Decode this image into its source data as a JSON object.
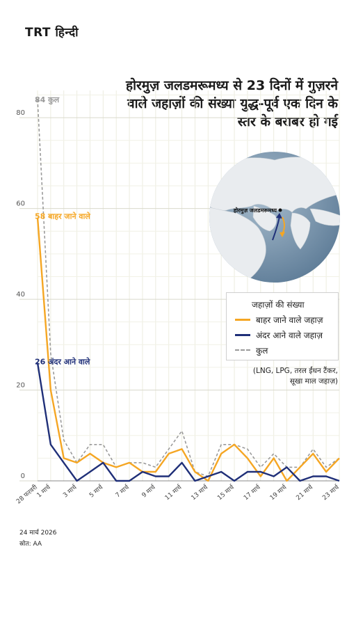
{
  "brand": {
    "logo": "TRT हिन्दी"
  },
  "title_lines": [
    "होरमुज़ जलडमरूमध्य से 23 दिनों में गुज़रने",
    "वाले जहाज़ों की संख्या युद्ध-पूर्व एक दिन के",
    "स्तर के बराबर हो गई"
  ],
  "map": {
    "label": "होरमुज़ जलडमरूमध्य"
  },
  "legend": {
    "title": "जहाज़ों की संख्या",
    "items": [
      {
        "label": "बाहर जाने वाले जहाज़",
        "color": "#f5a623",
        "style": "solid"
      },
      {
        "label": "अंदर आने वाले जहाज़",
        "color": "#1f2f78",
        "style": "solid"
      },
      {
        "label": "कुल",
        "color": "#9a9a9a",
        "style": "dashed"
      }
    ]
  },
  "note_lines": [
    "(LNG, LPG, तरल ईंधन टैंकर,",
    "सूखा माल जहाज़)"
  ],
  "footer": {
    "date": "24 मार्च 2026",
    "source": "स्रोत: AA"
  },
  "chart_data": {
    "type": "line",
    "title": "होरमुज़ जलडमरूमध्य से 23 दिनों में गुज़रने वाले जहाज़ों की संख्या युद्ध-पूर्व एक दिन के स्तर के बराबर हो गई",
    "x": [
      "28 फरवरी",
      "1 मार्च",
      "2 मार्च",
      "3 मार्च",
      "4 मार्च",
      "5 मार्च",
      "6 मार्च",
      "7 मार्च",
      "8 मार्च",
      "9 मार्च",
      "10 मार्च",
      "11 मार्च",
      "12 मार्च",
      "13 मार्च",
      "14 मार्च",
      "15 मार्च",
      "16 मार्च",
      "17 मार्च",
      "18 मार्च",
      "19 मार्च",
      "20 मार्च",
      "21 मार्च",
      "22 मार्च",
      "23 मार्च"
    ],
    "xtick_labels": [
      "28 फरवरी",
      "1 मार्च",
      "3 मार्च",
      "5 मार्च",
      "7 मार्च",
      "9 मार्च",
      "11 मार्च",
      "13 मार्च",
      "15 मार्च",
      "17 मार्च",
      "19 मार्च",
      "21 मार्च",
      "23 मार्च"
    ],
    "yticks": [
      0,
      20,
      40,
      60,
      80
    ],
    "ylim": [
      0,
      86
    ],
    "grid": true,
    "legend_position": "right",
    "series": [
      {
        "name": "बाहर जाने वाले जहाज़",
        "color": "#f5a623",
        "dash": false,
        "values": [
          58,
          20,
          5,
          4,
          6,
          4,
          3,
          4,
          2,
          2,
          6,
          7,
          2,
          0,
          6,
          8,
          5,
          1,
          5,
          0,
          3,
          6,
          2,
          5
        ]
      },
      {
        "name": "अंदर आने वाले जहाज़",
        "color": "#1f2f78",
        "dash": false,
        "values": [
          26,
          8,
          4,
          0,
          2,
          4,
          0,
          0,
          2,
          1,
          1,
          4,
          0,
          1,
          2,
          0,
          2,
          2,
          1,
          3,
          0,
          1,
          1,
          0
        ]
      },
      {
        "name": "कुल",
        "color": "#9a9a9a",
        "dash": true,
        "values": [
          84,
          28,
          9,
          4,
          8,
          8,
          3,
          4,
          4,
          3,
          7,
          11,
          2,
          1,
          8,
          8,
          7,
          3,
          6,
          3,
          3,
          7,
          3,
          5
        ]
      }
    ],
    "annotations": [
      {
        "text": "84 कुल",
        "series": 2,
        "index": 0,
        "color": "#9a9a9a"
      },
      {
        "text": "58 बाहर जाने वाले",
        "series": 0,
        "index": 0,
        "color": "#f5a623"
      },
      {
        "text": "26 अंदर आने वाले",
        "series": 1,
        "index": 0,
        "color": "#1f2f78"
      }
    ]
  }
}
